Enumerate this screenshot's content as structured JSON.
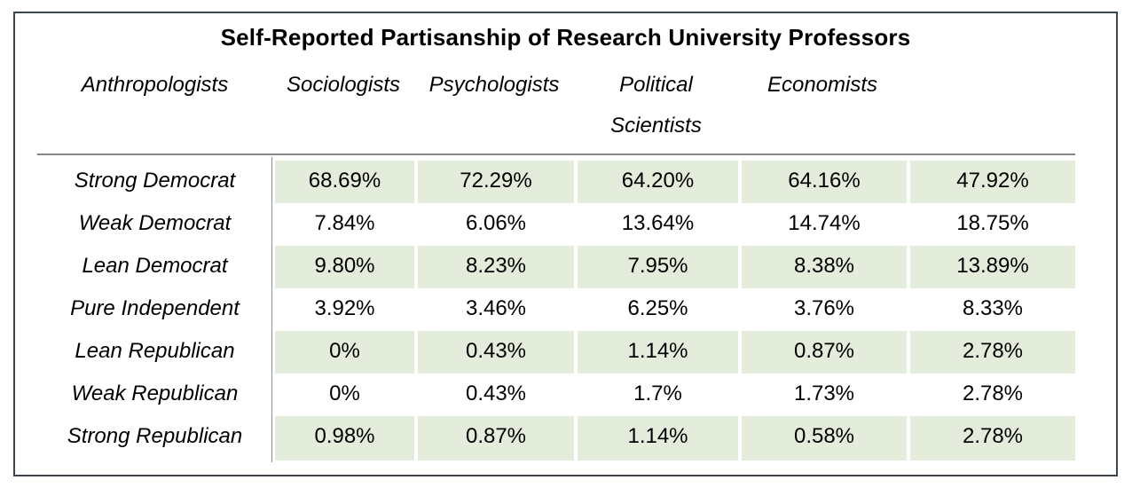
{
  "title": "Self-Reported Partisanship of Research University Professors",
  "columns": [
    "Anthropologists",
    "Sociologists",
    "Psychologists",
    "Political Scientists",
    "Economists"
  ],
  "rows": [
    {
      "label": "Strong Democrat",
      "values": [
        "68.69%",
        "72.29%",
        "64.20%",
        "64.16%",
        "47.92%"
      ]
    },
    {
      "label": "Weak Democrat",
      "values": [
        "7.84%",
        "6.06%",
        "13.64%",
        "14.74%",
        "18.75%"
      ]
    },
    {
      "label": "Lean Democrat",
      "values": [
        "9.80%",
        "8.23%",
        "7.95%",
        "8.38%",
        "13.89%"
      ]
    },
    {
      "label": "Pure Independent",
      "values": [
        "3.92%",
        "3.46%",
        "6.25%",
        "3.76%",
        "8.33%"
      ]
    },
    {
      "label": "Lean Republican",
      "values": [
        "0%",
        "0.43%",
        "1.14%",
        "0.87%",
        "2.78%"
      ]
    },
    {
      "label": "Weak Republican",
      "values": [
        "0%",
        "0.43%",
        "1.7%",
        "1.73%",
        "2.78%"
      ]
    },
    {
      "label": "Strong Republican",
      "values": [
        "0.98%",
        "0.87%",
        "1.14%",
        "0.58%",
        "2.78%"
      ]
    }
  ],
  "colors": {
    "row_shading": "#e4ecdb",
    "frame_border": "#3b4650",
    "rule_gray": "#868686"
  },
  "chart_data": {
    "type": "table",
    "title": "Self-Reported Partisanship of Research University Professors",
    "categories": [
      "Anthropologists",
      "Sociologists",
      "Psychologists",
      "Political Scientists",
      "Economists"
    ],
    "row_labels": [
      "Strong Democrat",
      "Weak Democrat",
      "Lean Democrat",
      "Pure Independent",
      "Lean Republican",
      "Weak Republican",
      "Strong Republican"
    ],
    "units": "percent",
    "series": [
      {
        "name": "Strong Democrat",
        "values": [
          68.69,
          72.29,
          64.2,
          64.16,
          47.92
        ]
      },
      {
        "name": "Weak Democrat",
        "values": [
          7.84,
          6.06,
          13.64,
          14.74,
          18.75
        ]
      },
      {
        "name": "Lean Democrat",
        "values": [
          9.8,
          8.23,
          7.95,
          8.38,
          13.89
        ]
      },
      {
        "name": "Pure Independent",
        "values": [
          3.92,
          3.46,
          6.25,
          3.76,
          8.33
        ]
      },
      {
        "name": "Lean Republican",
        "values": [
          0,
          0.43,
          1.14,
          0.87,
          2.78
        ]
      },
      {
        "name": "Weak Republican",
        "values": [
          0,
          0.43,
          1.7,
          1.73,
          2.78
        ]
      },
      {
        "name": "Strong Republican",
        "values": [
          0.98,
          0.87,
          1.14,
          0.58,
          2.78
        ]
      }
    ],
    "layout": {
      "shaded_rows": [
        0,
        2,
        4,
        6
      ],
      "header_style": "italic",
      "row_label_style": "italic",
      "grid": "horizontal rule above body only; vertical rule after label column"
    }
  }
}
